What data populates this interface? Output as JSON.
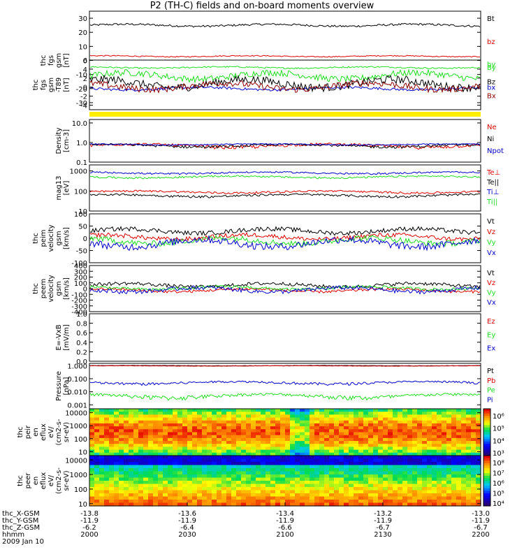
{
  "title": "P2 (TH-C) fields and on-board moments overview",
  "colors": {
    "black": "#000000",
    "red": "#dd0000",
    "green": "#22dd22",
    "blue": "#0000cc",
    "darkred": "#8b0000",
    "yellow": "#ffee00"
  },
  "chart_data": [
    {
      "id": "p1",
      "type": "line",
      "ylabel": [
        "thc",
        "fgs",
        "gsm",
        "[nT]"
      ],
      "ylim": [
        -35,
        35
      ],
      "ticks": [
        "30",
        "20",
        "10",
        "0",
        "-10",
        "-20",
        "-30"
      ],
      "tick_values": [
        30,
        20,
        10,
        0,
        -10,
        -20,
        -30
      ],
      "series": [
        {
          "name": "Bt",
          "color": "#000000",
          "base": 25,
          "amp": 1.2
        },
        {
          "name": "bz",
          "color": "#dd0000",
          "base": 3,
          "amp": 0.6
        },
        {
          "name": "by",
          "color": "#22dd22",
          "base": -5,
          "amp": 0.8
        },
        {
          "name": "bx",
          "color": "#0000cc",
          "base": -20,
          "amp": 1.5
        }
      ]
    },
    {
      "id": "p2",
      "type": "line",
      "ylabel": [
        "thc",
        "fgs",
        "gsm",
        "-T89",
        "[nT]"
      ],
      "ylim": [
        -5,
        6
      ],
      "ticks": [
        "6",
        "4",
        "2",
        "0",
        "-2",
        "-4"
      ],
      "tick_values": [
        6,
        4,
        2,
        0,
        -2,
        -4
      ],
      "series": [
        {
          "name": "By",
          "color": "#22dd22",
          "base": 2.5,
          "amp": 1.2
        },
        {
          "name": "Bz",
          "color": "#000000",
          "base": 0.8,
          "amp": 1.5
        },
        {
          "name": "Bx",
          "color": "#8b0000",
          "base": 0.2,
          "amp": 1.2
        }
      ]
    },
    {
      "id": "p3",
      "type": "line",
      "ylabel": [
        "Density",
        "[cm-3]"
      ],
      "ylim": [
        0.1,
        15
      ],
      "scale": "log",
      "ticks": [
        "10.0",
        "1.0",
        "0.1"
      ],
      "tick_values": [
        10,
        1,
        0.1
      ],
      "series": [
        {
          "name": "Ne",
          "color": "#dd0000",
          "base": 0.7,
          "amp": 0.25
        },
        {
          "name": "Ni",
          "color": "#000000",
          "base": 0.7,
          "amp": 0.2
        },
        {
          "name": "Npot",
          "color": "#0000cc",
          "base": 0.8,
          "amp": 0.1
        }
      ]
    },
    {
      "id": "p4",
      "type": "line",
      "ylabel": [
        "mag13",
        "[eV]"
      ],
      "ylim": [
        10,
        2000
      ],
      "scale": "log",
      "ticks": [
        "1000",
        "100",
        "10"
      ],
      "tick_values": [
        1000,
        100,
        10
      ],
      "series": [
        {
          "name": "Te⊥",
          "color": "#dd0000",
          "base": 90,
          "amp": 20
        },
        {
          "name": "Te||",
          "color": "#000000",
          "base": 60,
          "amp": 15
        },
        {
          "name": "Ti⊥",
          "color": "#0000cc",
          "base": 800,
          "amp": 150
        },
        {
          "name": "Ti||",
          "color": "#22dd22",
          "base": 500,
          "amp": 100
        }
      ]
    },
    {
      "id": "p5",
      "type": "line",
      "ylabel": [
        "thc",
        "peim",
        "velocity",
        "gsm",
        "[km/s]"
      ],
      "ylim": [
        -100,
        100
      ],
      "ticks": [
        "100",
        "50",
        "0",
        "-50",
        "-100"
      ],
      "tick_values": [
        100,
        50,
        0,
        -50,
        -100
      ],
      "series": [
        {
          "name": "Vt",
          "color": "#000000",
          "base": 30,
          "amp": 15
        },
        {
          "name": "Vz",
          "color": "#dd0000",
          "base": 5,
          "amp": 15
        },
        {
          "name": "Vy",
          "color": "#22dd22",
          "base": -10,
          "amp": 20
        },
        {
          "name": "Vx",
          "color": "#0000cc",
          "base": -20,
          "amp": 25
        }
      ]
    },
    {
      "id": "p6",
      "type": "line",
      "ylabel": [
        "thc",
        "peem",
        "velocity",
        "gsm",
        "[km/s]"
      ],
      "ylim": [
        -400,
        400
      ],
      "ticks": [
        "400",
        "300",
        "200",
        "100",
        "0",
        "-100",
        "-200",
        "-300",
        "-400"
      ],
      "tick_values": [
        400,
        300,
        200,
        100,
        0,
        -100,
        -200,
        -300,
        -400
      ],
      "series": [
        {
          "name": "Vt",
          "color": "#000000",
          "base": 60,
          "amp": 50
        },
        {
          "name": "Vz",
          "color": "#dd0000",
          "base": -30,
          "amp": 40
        },
        {
          "name": "Vy",
          "color": "#22dd22",
          "base": 10,
          "amp": 40
        },
        {
          "name": "Vx",
          "color": "#0000cc",
          "base": -20,
          "amp": 60
        }
      ]
    },
    {
      "id": "p7",
      "type": "line",
      "ylabel": [
        "E=-VxB",
        "[mV/m]"
      ],
      "ylim": [
        0,
        1
      ],
      "ticks": [
        "1.0",
        "0.8",
        "0.6",
        "0.4",
        "0.2",
        "0.0"
      ],
      "tick_values": [
        1,
        0.8,
        0.6,
        0.4,
        0.2,
        0
      ],
      "series": [
        {
          "name": "Ez",
          "color": "#dd0000"
        },
        {
          "name": "Ey",
          "color": "#22dd22"
        },
        {
          "name": "Ex",
          "color": "#0000cc"
        }
      ]
    },
    {
      "id": "p8",
      "type": "line",
      "ylabel": [
        "Pressure",
        "[nPa]"
      ],
      "ylim": [
        0.0005,
        1.5
      ],
      "scale": "log",
      "ticks": [
        "1.000",
        "0.100",
        "0.010",
        "0.001"
      ],
      "tick_values": [
        1,
        0.1,
        0.01,
        0.001
      ],
      "series": [
        {
          "name": "Pt",
          "color": "#000000",
          "base": 1.0,
          "amp": 0.05
        },
        {
          "name": "Pb",
          "color": "#dd0000",
          "base": 0.95,
          "amp": 0.05
        },
        {
          "name": "Pe",
          "color": "#22dd22",
          "base": 0.005,
          "amp": 0.003
        },
        {
          "name": "Pi",
          "color": "#0000cc",
          "base": 0.05,
          "amp": 0.02
        }
      ]
    },
    {
      "id": "p9",
      "type": "heatmap",
      "ylabel": [
        "thc",
        "peir",
        "en",
        "eflux",
        "eV/",
        "(cm2-s-",
        "sr-eV)"
      ],
      "ylim": [
        5,
        20000
      ],
      "scale": "log",
      "ticks": [
        "10000",
        "1000",
        "100",
        "10"
      ],
      "tick_values": [
        10000,
        1000,
        100,
        10
      ],
      "colorbar": [
        "10⁶",
        "10⁵",
        "10⁴",
        "10³"
      ]
    },
    {
      "id": "p10",
      "type": "heatmap",
      "ylabel": [
        "thc",
        "peer",
        "en",
        "eflux",
        "eV/",
        "(cm2-s-",
        "sr-eV)"
      ],
      "ylim": [
        7,
        20000
      ],
      "scale": "log",
      "ticks": [
        "10000",
        "1000",
        "100",
        "10"
      ],
      "tick_values": [
        10000,
        1000,
        100,
        10
      ],
      "colorbar": [
        "10⁸",
        "10⁷",
        "10⁶",
        "10⁵",
        "10⁴"
      ]
    }
  ],
  "xaxis": {
    "rows": [
      {
        "label": "thc_X-GSM",
        "values": [
          "-13.8",
          "-13.6",
          "-13.4",
          "-13.2",
          "-13.0"
        ]
      },
      {
        "label": "thc_Y-GSM",
        "values": [
          "-11.9",
          "-11.9",
          "-11.9",
          "-11.9",
          "-11.9"
        ]
      },
      {
        "label": "thc_Z-GSM",
        "values": [
          "-6.2",
          "-6.4",
          "-6.6",
          "-6.7",
          "-6.7"
        ]
      },
      {
        "label": "hhmm",
        "values": [
          "2000",
          "2030",
          "2100",
          "2130",
          "2200"
        ]
      }
    ],
    "date": "2009 Jan 10"
  }
}
